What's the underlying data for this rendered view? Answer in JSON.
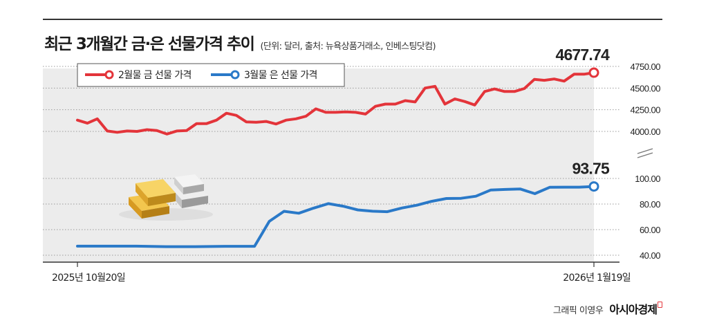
{
  "header": {
    "title": "최근 3개월간 금·은 선물가격 추이",
    "subtitle": "(단위: 달러, 출처: 뉴욕상품거래소, 인베스팅닷컴)"
  },
  "footer": {
    "credit": "그래픽 이영우",
    "brand": "아시아경제"
  },
  "colors": {
    "gold": "#e3343a",
    "silver": "#2a79c8",
    "panel": "#ececec"
  },
  "icons": [
    "gold-silver-bars-icon",
    "axis-break-icon"
  ],
  "chart_data": {
    "type": "line",
    "x_start_label": "2025년 10월20일",
    "x_end_label": "2026년 1월19일",
    "grid": true,
    "legend_position": "top-left",
    "legend": [
      {
        "label": "2월물 금 선물 가격",
        "series": "gold"
      },
      {
        "label": "3월물 은 선물 가격",
        "series": "silver"
      }
    ],
    "gold": {
      "name": "2월물 금 선물 가격",
      "ylim": [
        4000,
        4750
      ],
      "tick_labels": [
        "4750.00",
        "4500.00",
        "4250.00",
        "4000.00"
      ],
      "end_label": "4677.74",
      "values": [
        4130,
        4095,
        4145,
        4005,
        3990,
        4005,
        4000,
        4020,
        4010,
        3970,
        4005,
        4010,
        4090,
        4090,
        4130,
        4210,
        4185,
        4110,
        4105,
        4115,
        4085,
        4130,
        4145,
        4175,
        4260,
        4220,
        4220,
        4225,
        4220,
        4200,
        4290,
        4315,
        4315,
        4355,
        4340,
        4500,
        4520,
        4315,
        4375,
        4345,
        4305,
        4460,
        4490,
        4460,
        4460,
        4495,
        4600,
        4590,
        4605,
        4580,
        4660,
        4660,
        4677.74
      ]
    },
    "silver": {
      "name": "3월물 은 선물 가격",
      "ylim": [
        40,
        100
      ],
      "tick_labels": [
        "100.00",
        "80.00",
        "60.00",
        "40.00"
      ],
      "end_label": "93.75",
      "values": [
        47.1,
        47.1,
        47.1,
        47.1,
        47.1,
        46.9,
        46.7,
        46.7,
        46.7,
        46.8,
        47.0,
        47.0,
        47.0,
        66.5,
        74.3,
        72.8,
        76.8,
        80.3,
        78.3,
        75.4,
        74.4,
        74.0,
        76.9,
        79.1,
        82.1,
        84.3,
        84.5,
        86.1,
        90.9,
        91.4,
        91.8,
        88.1,
        93.1,
        93.2,
        93.2,
        93.75
      ]
    }
  }
}
